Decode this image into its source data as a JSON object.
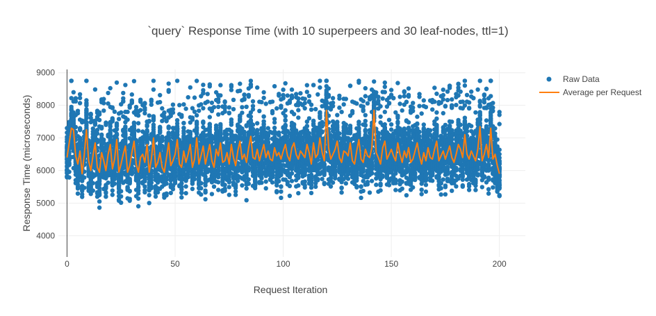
{
  "chart_data": {
    "type": "scatter",
    "title": "`query` Response Time (with 10 superpeers and 30 leaf-nodes, ttl=1)",
    "xlabel": "Request Iteration",
    "ylabel": "Response Time (microseconds)",
    "xlim": [
      -4,
      212
    ],
    "ylim": [
      3350,
      9100
    ],
    "x_ticks": [
      0,
      50,
      100,
      150,
      200
    ],
    "y_ticks": [
      4000,
      5000,
      6000,
      7000,
      8000,
      9000
    ],
    "grid": true,
    "legend_position": "top-right",
    "series": [
      {
        "name": "Raw Data",
        "mode": "markers",
        "color": "#1f77b4",
        "note": "40 samples per request iteration (0-200), approx. range 3600-8700"
      },
      {
        "name": "Average per Request",
        "mode": "lines",
        "color": "#ff7f0e",
        "x": [
          0,
          1,
          2,
          3,
          4,
          5,
          6,
          7,
          8,
          9,
          10,
          11,
          12,
          13,
          14,
          15,
          16,
          17,
          18,
          19,
          20,
          21,
          22,
          23,
          24,
          25,
          26,
          27,
          28,
          29,
          30,
          31,
          32,
          33,
          34,
          35,
          36,
          37,
          38,
          39,
          40,
          41,
          42,
          43,
          44,
          45,
          46,
          47,
          48,
          49,
          50,
          51,
          52,
          53,
          54,
          55,
          56,
          57,
          58,
          59,
          60,
          61,
          62,
          63,
          64,
          65,
          66,
          67,
          68,
          69,
          70,
          71,
          72,
          73,
          74,
          75,
          76,
          77,
          78,
          79,
          80,
          81,
          82,
          83,
          84,
          85,
          86,
          87,
          88,
          89,
          90,
          91,
          92,
          93,
          94,
          95,
          96,
          97,
          98,
          99,
          100,
          101,
          102,
          103,
          104,
          105,
          106,
          107,
          108,
          109,
          110,
          111,
          112,
          113,
          114,
          115,
          116,
          117,
          118,
          119,
          120,
          121,
          122,
          123,
          124,
          125,
          126,
          127,
          128,
          129,
          130,
          131,
          132,
          133,
          134,
          135,
          136,
          137,
          138,
          139,
          140,
          141,
          142,
          143,
          144,
          145,
          146,
          147,
          148,
          149,
          150,
          151,
          152,
          153,
          154,
          155,
          156,
          157,
          158,
          159,
          160,
          161,
          162,
          163,
          164,
          165,
          166,
          167,
          168,
          169,
          170,
          171,
          172,
          173,
          174,
          175,
          176,
          177,
          178,
          179,
          180,
          181,
          182,
          183,
          184,
          185,
          186,
          187,
          188,
          189,
          190,
          191,
          192,
          193,
          194,
          195,
          196,
          197,
          198,
          199,
          200
        ],
        "values": [
          6400,
          6850,
          7300,
          7250,
          6450,
          6200,
          6600,
          5900,
          6500,
          7250,
          6300,
          6000,
          6450,
          6850,
          6100,
          5950,
          6550,
          6300,
          6000,
          6500,
          6800,
          6050,
          6350,
          6950,
          5950,
          6200,
          6500,
          6750,
          5950,
          6150,
          6550,
          6900,
          6200,
          5950,
          6400,
          6500,
          6250,
          6800,
          5950,
          6350,
          7000,
          6100,
          6250,
          6550,
          6100,
          5950,
          6400,
          6850,
          6150,
          6300,
          6500,
          6950,
          6200,
          6100,
          6600,
          6250,
          6500,
          6800,
          6100,
          6350,
          7000,
          6200,
          6450,
          6750,
          6200,
          6500,
          6800,
          6300,
          6100,
          6650,
          6450,
          6850,
          6250,
          6300,
          6550,
          6200,
          6800,
          6400,
          6150,
          6600,
          6900,
          6350,
          6500,
          6250,
          6700,
          7050,
          6400,
          6350,
          6650,
          6300,
          6550,
          6800,
          6400,
          6600,
          6350,
          6300,
          6700,
          6450,
          6550,
          6350,
          6600,
          6800,
          6450,
          6300,
          6700,
          6850,
          6500,
          6350,
          6600,
          6500,
          6400,
          6800,
          6550,
          6200,
          6850,
          6400,
          6500,
          7000,
          6550,
          6300,
          7850,
          6700,
          6350,
          6500,
          6650,
          6900,
          6400,
          6250,
          6600,
          6550,
          6450,
          6850,
          6300,
          6200,
          6600,
          6950,
          6350,
          6250,
          6650,
          6450,
          6400,
          6700,
          7850,
          6550,
          6400,
          6200,
          6700,
          6900,
          6350,
          6500,
          6650,
          6450,
          6300,
          6850,
          6500,
          6250,
          6600,
          6400,
          6700,
          6250,
          6350,
          6600,
          6850,
          6450,
          6200,
          6550,
          6300,
          6700,
          6400,
          6350,
          6650,
          6900,
          6300,
          6450,
          6600,
          6350,
          6550,
          6750,
          6400,
          6250,
          6500,
          6800,
          6650,
          6400,
          7100,
          6500,
          6350,
          6600,
          6450,
          6300,
          6650,
          7350,
          6300,
          6500,
          6800,
          6400,
          7300,
          6350,
          6500,
          6150,
          5900
        ]
      }
    ]
  }
}
